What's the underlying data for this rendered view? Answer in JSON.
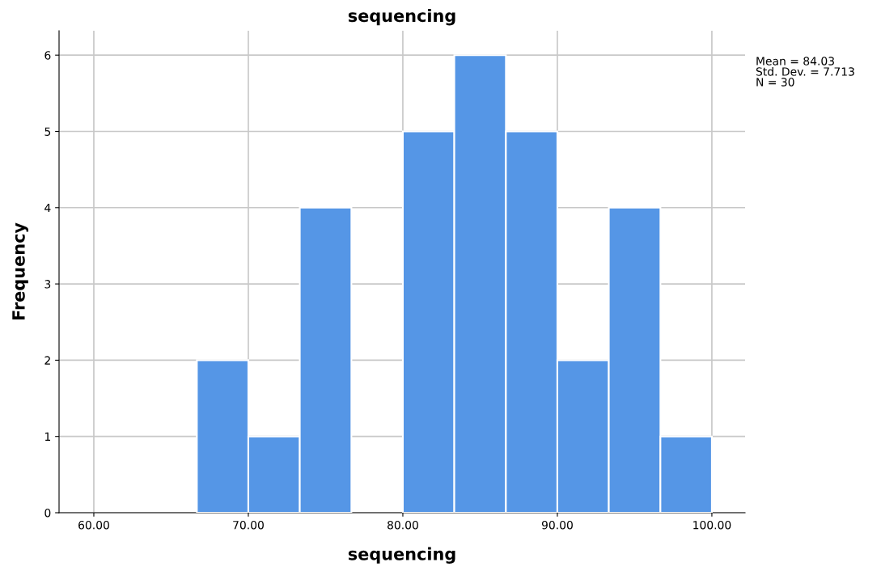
{
  "chart_data": {
    "type": "histogram",
    "title": "sequencing",
    "xlabel": "sequencing",
    "ylabel": "Frequency",
    "bins": [
      66.67,
      70,
      73.33,
      76.67,
      80,
      83.33,
      86.67,
      90,
      93.33,
      96.67,
      100
    ],
    "values": [
      2,
      1,
      4,
      0,
      5,
      6,
      5,
      2,
      4,
      1
    ],
    "color": "#5596e6",
    "xlim": [
      57.75,
      102.15
    ],
    "xticks": [
      {
        "value": 60,
        "label": "60.00"
      },
      {
        "value": 70,
        "label": "70.00"
      },
      {
        "value": 80,
        "label": "80.00"
      },
      {
        "value": 90,
        "label": "90.00"
      },
      {
        "value": 100,
        "label": "100.00"
      }
    ],
    "ylim": [
      0,
      6.32
    ],
    "yticks": [
      0,
      1,
      2,
      3,
      4,
      5,
      6
    ],
    "grid": true,
    "annotations": [
      "Mean = 84.03",
      "Std. Dev. = 7.713",
      "N = 30"
    ]
  }
}
